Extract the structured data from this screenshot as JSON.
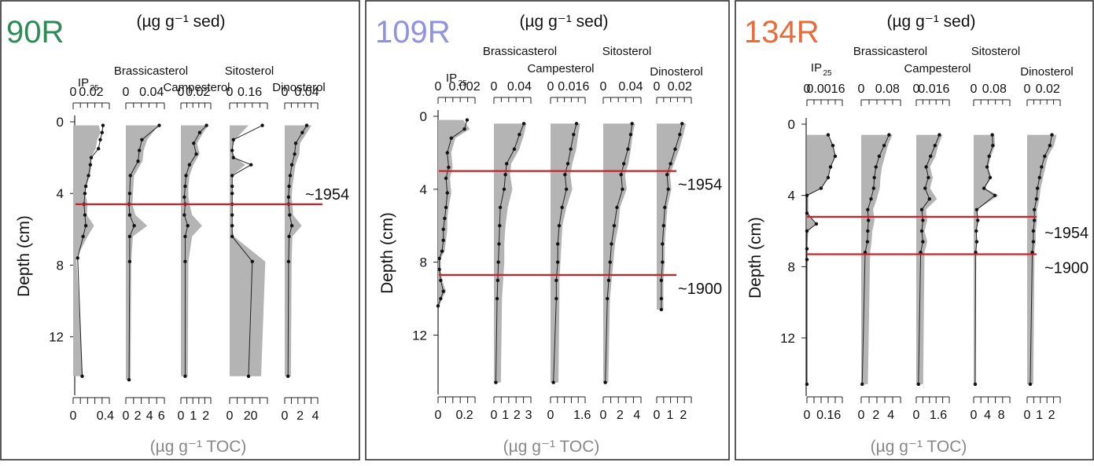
{
  "chart_data": [
    {
      "type": "area",
      "core": "90R",
      "core_color": "#2e8b57",
      "top_unit": "(µg g⁻¹ sed)",
      "bottom_unit": "(µg g⁻¹ TOC)",
      "ylabel": "Depth (cm)",
      "ylim": [
        0,
        15
      ],
      "yticks": [
        0,
        4,
        8,
        12
      ],
      "horizons": [
        {
          "depth": 4.6,
          "label": "~1954"
        }
      ],
      "series": [
        {
          "name": "IP25",
          "name_main": "IP",
          "name_sub": "25",
          "top_ticks": [
            "0",
            "0.02"
          ],
          "bottom_ticks": [
            "0",
            "0.4"
          ],
          "top_max": 0.04,
          "bottom_max": 0.45,
          "depth": [
            0.2,
            0.6,
            1.0,
            1.5,
            2.0,
            2.4,
            3.0,
            3.6,
            4.0,
            4.6,
            5.2,
            5.8,
            6.4,
            7.6,
            14.2
          ],
          "sed": [
            0.033,
            0.032,
            0.03,
            0.028,
            0.02,
            0.019,
            0.017,
            0.014,
            0.013,
            0.012,
            0.013,
            0.014,
            0.011,
            0.005,
            0.01
          ],
          "toc": [
            0.32,
            0.34,
            0.3,
            0.28,
            0.22,
            0.23,
            0.21,
            0.16,
            0.15,
            0.18,
            0.17,
            0.26,
            0.18,
            0.04,
            0.12
          ]
        },
        {
          "name": "Brassicasterol",
          "top_ticks": [
            "0",
            "0.04"
          ],
          "bottom_ticks": [
            "0",
            "2",
            "4",
            "6"
          ],
          "top_max": 0.06,
          "bottom_max": 6.5,
          "depth": [
            0.2,
            1.0,
            1.6,
            2.2,
            3.0,
            4.0,
            4.6,
            5.2,
            5.8,
            6.4,
            7.8,
            14.4
          ],
          "sed": [
            0.052,
            0.025,
            0.021,
            0.019,
            0.007,
            0.006,
            0.005,
            0.006,
            0.013,
            0.006,
            0.006,
            0.005
          ],
          "toc": [
            5.5,
            3.6,
            3.0,
            2.8,
            1.4,
            1.2,
            1.1,
            1.6,
            3.6,
            1.2,
            0.9,
            0.8
          ]
        },
        {
          "name": "Campesterol",
          "top_ticks": [
            "0",
            "0.02"
          ],
          "bottom_ticks": [
            "0",
            "1",
            "2"
          ],
          "top_max": 0.035,
          "bottom_max": 2.4,
          "depth": [
            0.2,
            0.6,
            1.2,
            1.8,
            2.4,
            3.0,
            3.6,
            4.2,
            4.6,
            5.2,
            5.8,
            6.4,
            7.8,
            14.2
          ],
          "sed": [
            0.03,
            0.022,
            0.015,
            0.018,
            0.01,
            0.006,
            0.005,
            0.004,
            0.005,
            0.004,
            0.008,
            0.005,
            0.005,
            0.005
          ],
          "toc": [
            2.2,
            1.8,
            1.3,
            1.5,
            1.0,
            0.7,
            0.6,
            0.6,
            0.7,
            0.9,
            1.7,
            0.9,
            0.6,
            0.55
          ]
        },
        {
          "name": "Sitosterol",
          "top_ticks": [
            "0",
            "0.16"
          ],
          "bottom_ticks": [
            "0",
            "20"
          ],
          "top_max": 0.3,
          "bottom_max": 36,
          "depth": [
            0.2,
            1.0,
            1.6,
            2.0,
            2.4,
            3.0,
            3.6,
            4.0,
            4.6,
            5.2,
            5.8,
            6.4,
            7.8,
            14.2
          ],
          "sed": [
            0.26,
            0.03,
            0.02,
            0.03,
            0.17,
            0.02,
            0.02,
            0.02,
            0.02,
            0.02,
            0.02,
            0.02,
            0.18,
            0.15
          ],
          "toc": [
            18,
            5,
            2,
            5,
            15,
            2,
            2,
            2,
            2,
            2,
            2,
            4,
            34,
            30
          ]
        },
        {
          "name": "Dinosterol",
          "top_ticks": [
            "0",
            "0.04"
          ],
          "bottom_ticks": [
            "0",
            "2",
            "4"
          ],
          "top_max": 0.06,
          "bottom_max": 4.3,
          "depth": [
            0.2,
            0.6,
            1.2,
            1.8,
            2.4,
            3.0,
            3.6,
            4.2,
            4.6,
            5.2,
            5.8,
            6.4,
            7.8,
            14.2
          ],
          "sed": [
            0.04,
            0.032,
            0.02,
            0.018,
            0.013,
            0.01,
            0.008,
            0.007,
            0.007,
            0.009,
            0.013,
            0.008,
            0.007,
            0.006
          ],
          "toc": [
            3.5,
            2.9,
            2.0,
            1.9,
            1.4,
            1.2,
            1.0,
            0.9,
            1.0,
            1.1,
            2.2,
            1.0,
            0.9,
            0.8
          ]
        }
      ]
    },
    {
      "type": "area",
      "core": "109R",
      "core_color": "#8f93df",
      "top_unit": "(µg g⁻¹ sed)",
      "bottom_unit": "(µg g⁻¹ TOC)",
      "ylabel": "Depth (cm)",
      "ylim": [
        0,
        15
      ],
      "yticks": [
        0,
        4,
        8,
        12
      ],
      "horizons": [
        {
          "depth": 3.0,
          "label": "~1954"
        },
        {
          "depth": 8.7,
          "label": "~1900"
        }
      ],
      "series": [
        {
          "name": "IP25",
          "name_main": "IP",
          "name_sub": "25",
          "top_ticks": [
            "0",
            "0.002"
          ],
          "bottom_ticks": [
            "0",
            "0.2"
          ],
          "top_max": 0.0028,
          "bottom_max": 0.28,
          "depth": [
            0.2,
            0.7,
            1.2,
            2.0,
            2.8,
            3.4,
            4.2,
            5.0,
            5.6,
            6.2,
            6.8,
            7.4,
            7.8,
            8.4,
            9.0,
            9.6,
            10.0,
            10.4
          ],
          "sed": [
            0.0022,
            0.002,
            0.001,
            0.0007,
            0.0008,
            0.0006,
            0.0007,
            0.0006,
            0.0005,
            0.0004,
            0.0004,
            0.0003,
            0.0001,
            0.0001,
            0.0002,
            0.0004,
            0.0002,
            0.0
          ],
          "toc": [
            0.19,
            0.24,
            0.13,
            0.1,
            0.11,
            0.09,
            0.1,
            0.08,
            0.07,
            0.07,
            0.06,
            0.05,
            0.02,
            0.02,
            0.03,
            0.06,
            0.03,
            0.01
          ]
        },
        {
          "name": "Brassicasterol",
          "top_ticks": [
            "0",
            "0.04"
          ],
          "bottom_ticks": [
            "0",
            "1",
            "2",
            "3"
          ],
          "top_max": 0.058,
          "bottom_max": 3.2,
          "depth": [
            0.4,
            1.0,
            1.8,
            2.6,
            3.2,
            4.0,
            5.0,
            6.0,
            7.0,
            8.0,
            9.0,
            10.0,
            14.6
          ],
          "sed": [
            0.047,
            0.04,
            0.032,
            0.02,
            0.018,
            0.016,
            0.01,
            0.009,
            0.008,
            0.007,
            0.006,
            0.005,
            0.003
          ],
          "toc": [
            2.8,
            2.6,
            2.2,
            1.5,
            1.4,
            1.6,
            1.2,
            1.0,
            0.9,
            0.9,
            0.8,
            0.7,
            0.6
          ]
        },
        {
          "name": "Campesterol",
          "top_ticks": [
            "0",
            "0.016"
          ],
          "bottom_ticks": [
            "0",
            "1.6"
          ],
          "top_max": 0.024,
          "bottom_max": 1.75,
          "depth": [
            0.4,
            1.0,
            1.8,
            2.6,
            3.2,
            4.0,
            5.0,
            6.0,
            7.0,
            8.0,
            9.0,
            10.0,
            14.6
          ],
          "sed": [
            0.018,
            0.016,
            0.014,
            0.012,
            0.01,
            0.011,
            0.008,
            0.006,
            0.005,
            0.005,
            0.004,
            0.004,
            0.002
          ],
          "toc": [
            1.5,
            1.4,
            1.3,
            1.1,
            1.0,
            1.1,
            0.8,
            0.6,
            0.55,
            0.5,
            0.45,
            0.45,
            0.4
          ]
        },
        {
          "name": "Sitosterol",
          "top_ticks": [
            "0",
            "0.04"
          ],
          "bottom_ticks": [
            "0",
            "2",
            "4"
          ],
          "top_max": 0.055,
          "bottom_max": 4.5,
          "depth": [
            0.4,
            1.0,
            1.8,
            2.6,
            3.2,
            4.0,
            5.0,
            6.0,
            7.0,
            8.0,
            9.0,
            10.0,
            14.6
          ],
          "sed": [
            0.042,
            0.04,
            0.036,
            0.03,
            0.026,
            0.028,
            0.02,
            0.016,
            0.012,
            0.01,
            0.008,
            0.006,
            0.003
          ],
          "toc": [
            3.8,
            3.5,
            3.3,
            3.0,
            2.6,
            2.8,
            2.0,
            1.8,
            1.4,
            1.2,
            1.0,
            0.8,
            0.6
          ]
        },
        {
          "name": "Dinosterol",
          "top_ticks": [
            "0",
            "0.02"
          ],
          "bottom_ticks": [
            "0",
            "1",
            "2"
          ],
          "top_max": 0.03,
          "bottom_max": 2.6,
          "depth": [
            0.4,
            1.0,
            1.8,
            2.6,
            3.2,
            4.0,
            5.0,
            6.0,
            7.0,
            8.0,
            9.0,
            10.0,
            10.6
          ],
          "sed": [
            0.022,
            0.02,
            0.016,
            0.012,
            0.009,
            0.01,
            0.007,
            0.006,
            0.005,
            0.005,
            0.004,
            0.004,
            0.004
          ],
          "toc": [
            2.2,
            2.0,
            1.7,
            1.3,
            1.0,
            1.1,
            0.8,
            0.7,
            0.6,
            0.6,
            0.5,
            0.5,
            0.5
          ]
        }
      ]
    },
    {
      "type": "area",
      "core": "134R",
      "core_color": "#ea6b3a",
      "top_unit": "(µg g⁻¹ sed)",
      "bottom_unit": "(µg g⁻¹ TOC)",
      "ylabel": "Depth (cm)",
      "ylim": [
        0,
        15
      ],
      "yticks": [
        0,
        4,
        8,
        12
      ],
      "horizons": [
        {
          "depth": 5.2,
          "label": "~1954"
        },
        {
          "depth": 7.3,
          "label": "~1900"
        }
      ],
      "series": [
        {
          "name": "IP25",
          "name_main": "IP",
          "name_sub": "25",
          "top_ticks": [
            "0",
            "0.0016"
          ],
          "bottom_ticks": [
            "0",
            "0.16"
          ],
          "top_max": 0.003,
          "bottom_max": 0.26,
          "depth": [
            0.6,
            1.2,
            1.8,
            2.4,
            3.0,
            3.6,
            4.0,
            5.0,
            5.6,
            6.0,
            7.0,
            7.6,
            14.6
          ],
          "sed": [
            0.0018,
            0.0022,
            0.0024,
            0.002,
            0.0018,
            0.0012,
            0.0,
            0.0,
            0.0008,
            0.0,
            0.0,
            0.0,
            0.0
          ],
          "toc": [
            0.15,
            0.19,
            0.21,
            0.17,
            0.16,
            0.11,
            0.01,
            0.01,
            0.07,
            0.01,
            0.0,
            0.0,
            0.0
          ]
        },
        {
          "name": "Brassicasterol",
          "top_ticks": [
            "0",
            "0.08"
          ],
          "bottom_ticks": [
            "0",
            "2",
            "4"
          ],
          "top_max": 0.12,
          "bottom_max": 5.3,
          "depth": [
            0.6,
            1.2,
            1.8,
            2.4,
            3.0,
            3.6,
            4.2,
            4.8,
            5.4,
            6.0,
            6.6,
            7.2,
            14.6
          ],
          "sed": [
            0.085,
            0.07,
            0.055,
            0.045,
            0.04,
            0.038,
            0.03,
            0.02,
            0.022,
            0.02,
            0.019,
            0.012,
            0.003
          ],
          "toc": [
            4.2,
            3.6,
            3.2,
            2.8,
            2.6,
            2.5,
            2.1,
            1.6,
            1.8,
            1.5,
            1.4,
            1.2,
            0.9
          ]
        },
        {
          "name": "Campesterol",
          "top_ticks": [
            "0",
            "0.016"
          ],
          "bottom_ticks": [
            "0",
            "1.6"
          ],
          "top_max": 0.03,
          "bottom_max": 2.4,
          "depth": [
            0.6,
            1.2,
            1.8,
            2.4,
            3.0,
            3.6,
            4.2,
            4.8,
            5.4,
            6.0,
            6.6,
            7.2,
            14.6
          ],
          "sed": [
            0.021,
            0.017,
            0.013,
            0.009,
            0.011,
            0.008,
            0.012,
            0.005,
            0.006,
            0.005,
            0.006,
            0.004,
            0.002
          ],
          "toc": [
            1.9,
            1.6,
            1.4,
            1.0,
            1.2,
            1.0,
            1.5,
            0.7,
            0.8,
            0.6,
            0.8,
            0.6,
            0.5
          ]
        },
        {
          "name": "Sitosterol",
          "top_ticks": [
            "0",
            "0.08"
          ],
          "bottom_ticks": [
            "0",
            "4",
            "8"
          ],
          "top_max": 0.14,
          "bottom_max": 10.5,
          "depth": [
            0.6,
            1.2,
            1.8,
            2.4,
            3.0,
            3.6,
            4.0,
            4.8,
            5.4,
            6.0,
            6.6,
            7.2,
            14.6
          ],
          "sed": [
            0.072,
            0.074,
            0.06,
            0.052,
            0.064,
            0.04,
            0.082,
            0.012,
            0.016,
            0.01,
            0.012,
            0.008,
            0.006
          ],
          "toc": [
            6.0,
            6.2,
            5.0,
            4.2,
            5.2,
            3.2,
            7.2,
            1.0,
            1.4,
            0.8,
            1.0,
            0.7,
            0.6
          ]
        },
        {
          "name": "Dinosterol",
          "top_ticks": [
            "0",
            "0.02"
          ],
          "bottom_ticks": [
            "0",
            "1",
            "2"
          ],
          "top_max": 0.032,
          "bottom_max": 2.7,
          "depth": [
            0.6,
            1.2,
            1.8,
            2.4,
            3.0,
            3.6,
            4.2,
            4.8,
            5.4,
            6.0,
            6.6,
            7.2,
            14.6
          ],
          "sed": [
            0.024,
            0.022,
            0.017,
            0.014,
            0.012,
            0.01,
            0.009,
            0.007,
            0.007,
            0.006,
            0.006,
            0.005,
            0.003
          ],
          "toc": [
            2.4,
            2.2,
            1.7,
            1.5,
            1.3,
            1.1,
            1.0,
            0.8,
            0.8,
            0.7,
            0.7,
            0.6,
            0.5
          ]
        }
      ]
    }
  ]
}
